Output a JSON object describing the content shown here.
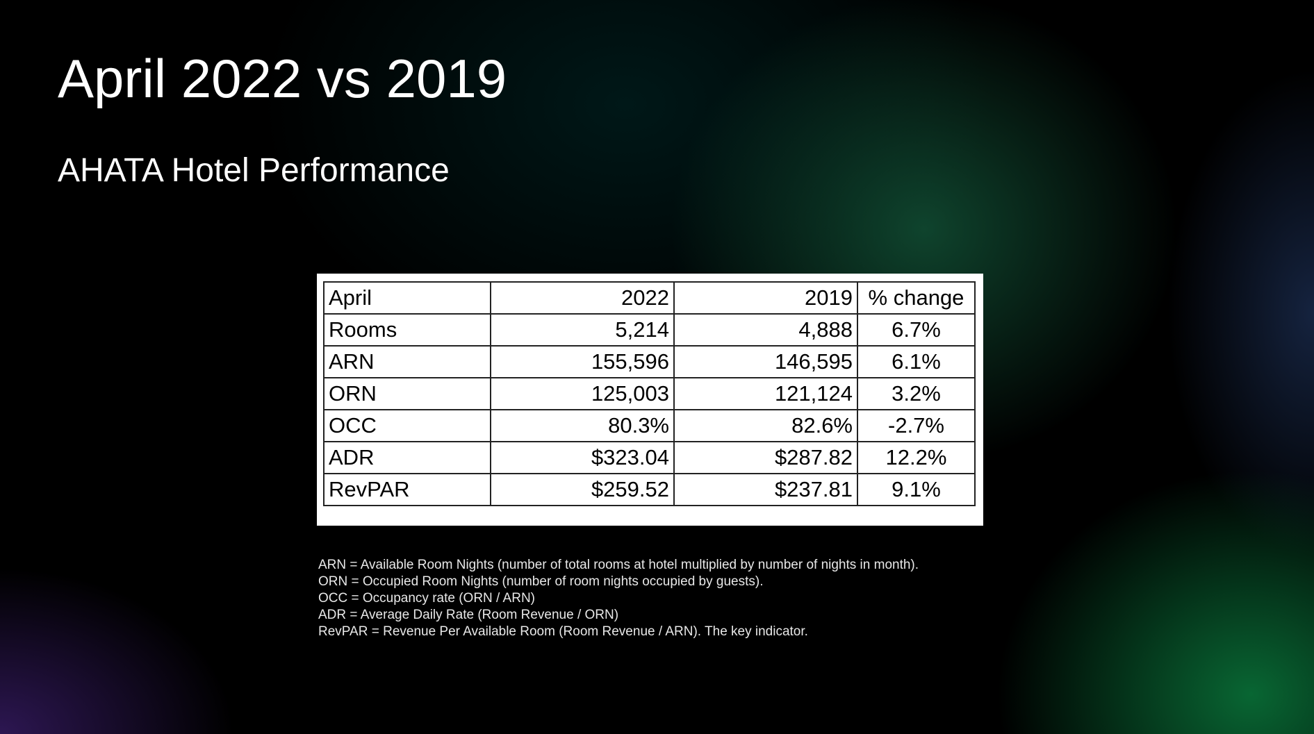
{
  "header": {
    "title": "April 2022 vs 2019",
    "subtitle": "AHATA Hotel Performance"
  },
  "table": {
    "columns": [
      "April",
      "2022",
      "2019",
      "% change"
    ],
    "rows": [
      [
        "Rooms",
        "5,214",
        "4,888",
        "6.7%"
      ],
      [
        "ARN",
        "155,596",
        "146,595",
        "6.1%"
      ],
      [
        "ORN",
        "125,003",
        "121,124",
        "3.2%"
      ],
      [
        "OCC",
        "80.3%",
        "82.6%",
        "-2.7%"
      ],
      [
        "ADR",
        "$323.04",
        "$287.82",
        "12.2%"
      ],
      [
        "RevPAR",
        "$259.52",
        "$237.81",
        "9.1%"
      ]
    ]
  },
  "notes": [
    "ARN = Available Room Nights (number of total rooms at hotel multiplied by number of nights in month).",
    "ORN = Occupied Room Nights (number of room nights occupied by guests).",
    "OCC = Occupancy rate (ORN / ARN)",
    "ADR = Average Daily Rate (Room Revenue / ORN)",
    "RevPAR = Revenue Per Available Room (Room Revenue / ARN). The key indicator."
  ]
}
